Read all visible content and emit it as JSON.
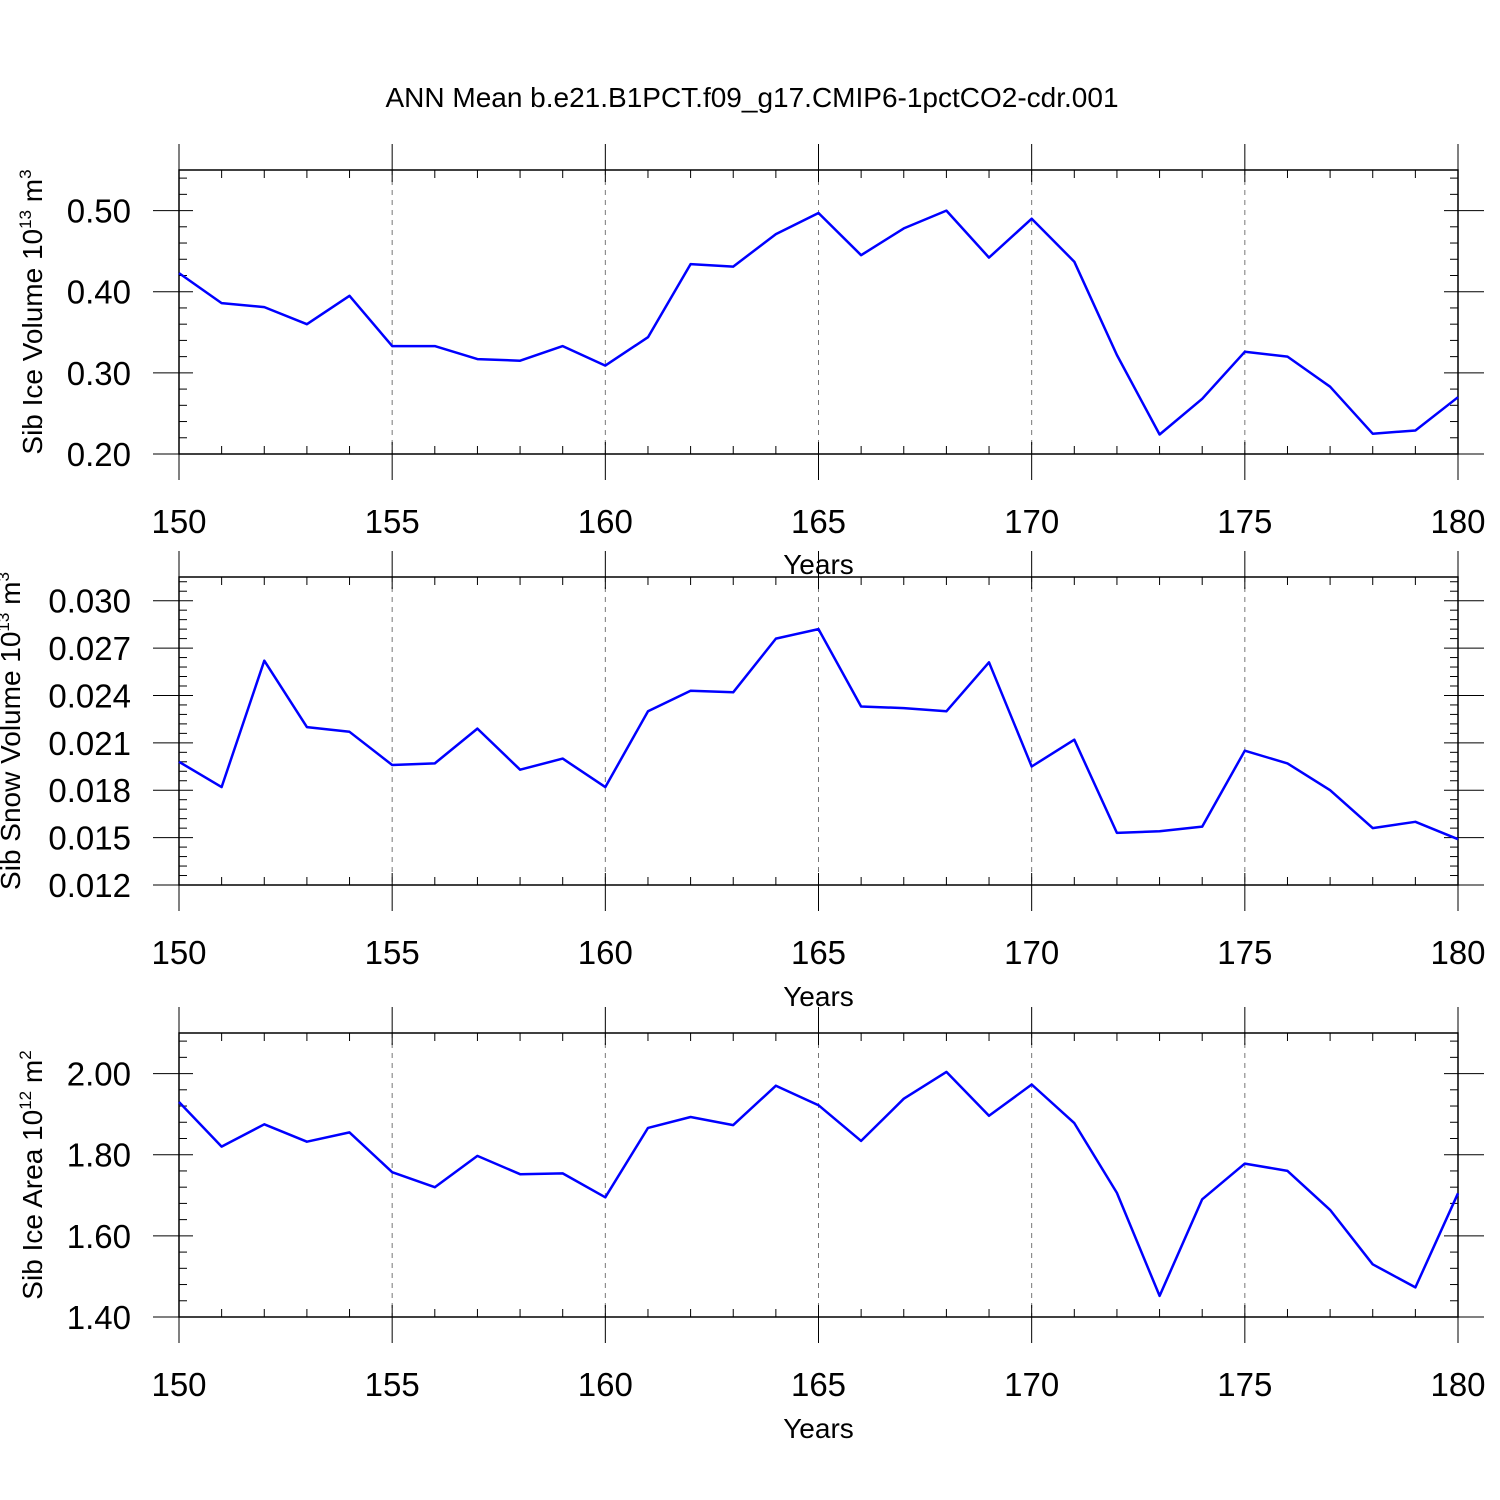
{
  "figure": {
    "title": "ANN Mean b.e21.B1PCT.f09_g17.CMIP6-1pctCO2-cdr.001",
    "line_color": "#0000ff",
    "grid_color": "#777777"
  },
  "chart_data": [
    {
      "type": "line",
      "xlabel": "Years",
      "ylabel": "Sib Ice Volume 10",
      "ylabel_exp": "13",
      "ylabel_unit": " m",
      "ylabel_unit_exp": "3",
      "xlim": [
        150,
        180
      ],
      "ylim": [
        0.2,
        0.55
      ],
      "xticks": [
        150,
        155,
        160,
        165,
        170,
        175,
        180
      ],
      "xtick_labels": [
        "150",
        "155",
        "160",
        "165",
        "170",
        "175",
        "180"
      ],
      "yticks": [
        0.2,
        0.3,
        0.4,
        0.5
      ],
      "ytick_labels": [
        "0.20",
        "0.30",
        "0.40",
        "0.50"
      ],
      "x": [
        150,
        151,
        152,
        153,
        154,
        155,
        156,
        157,
        158,
        159,
        160,
        161,
        162,
        163,
        164,
        165,
        166,
        167,
        168,
        169,
        170,
        171,
        172,
        173,
        174,
        175,
        176,
        177,
        178,
        179,
        180
      ],
      "values": [
        0.423,
        0.386,
        0.381,
        0.36,
        0.395,
        0.333,
        0.333,
        0.317,
        0.315,
        0.333,
        0.309,
        0.344,
        0.434,
        0.431,
        0.471,
        0.497,
        0.445,
        0.478,
        0.5,
        0.442,
        0.49,
        0.437,
        0.322,
        0.224,
        0.268,
        0.326,
        0.32,
        0.283,
        0.225,
        0.229,
        0.27
      ]
    },
    {
      "type": "line",
      "xlabel": "Years",
      "ylabel": "Sib Snow Volume 10",
      "ylabel_exp": "13",
      "ylabel_unit": " m",
      "ylabel_unit_exp": "3",
      "xlim": [
        150,
        180
      ],
      "ylim": [
        0.012,
        0.0315
      ],
      "xticks": [
        150,
        155,
        160,
        165,
        170,
        175,
        180
      ],
      "xtick_labels": [
        "150",
        "155",
        "160",
        "165",
        "170",
        "175",
        "180"
      ],
      "yticks": [
        0.012,
        0.015,
        0.018,
        0.021,
        0.024,
        0.027,
        0.03
      ],
      "ytick_labels": [
        "0.012",
        "0.015",
        "0.018",
        "0.021",
        "0.024",
        "0.027",
        "0.030"
      ],
      "x": [
        150,
        151,
        152,
        153,
        154,
        155,
        156,
        157,
        158,
        159,
        160,
        161,
        162,
        163,
        164,
        165,
        166,
        167,
        168,
        169,
        170,
        171,
        172,
        173,
        174,
        175,
        176,
        177,
        178,
        179,
        180
      ],
      "values": [
        0.0198,
        0.0182,
        0.0262,
        0.022,
        0.0217,
        0.0196,
        0.0197,
        0.0219,
        0.0193,
        0.02,
        0.0182,
        0.023,
        0.0243,
        0.0242,
        0.0276,
        0.0282,
        0.0233,
        0.0232,
        0.023,
        0.0261,
        0.0195,
        0.0212,
        0.0153,
        0.0154,
        0.0157,
        0.0205,
        0.0197,
        0.018,
        0.0156,
        0.016,
        0.0149
      ]
    },
    {
      "type": "line",
      "xlabel": "Years",
      "ylabel": "Sib Ice Area 10",
      "ylabel_exp": "12",
      "ylabel_unit": " m",
      "ylabel_unit_exp": "2",
      "xlim": [
        150,
        180
      ],
      "ylim": [
        1.4,
        2.1
      ],
      "xticks": [
        150,
        155,
        160,
        165,
        170,
        175,
        180
      ],
      "xtick_labels": [
        "150",
        "155",
        "160",
        "165",
        "170",
        "175",
        "180"
      ],
      "yticks": [
        1.4,
        1.6,
        1.8,
        2.0
      ],
      "ytick_labels": [
        "1.40",
        "1.60",
        "1.80",
        "2.00"
      ],
      "x": [
        150,
        151,
        152,
        153,
        154,
        155,
        156,
        157,
        158,
        159,
        160,
        161,
        162,
        163,
        164,
        165,
        166,
        167,
        168,
        169,
        170,
        171,
        172,
        173,
        174,
        175,
        176,
        177,
        178,
        179,
        180
      ],
      "values": [
        1.93,
        1.82,
        1.875,
        1.832,
        1.855,
        1.757,
        1.72,
        1.797,
        1.752,
        1.754,
        1.695,
        1.866,
        1.893,
        1.873,
        1.97,
        1.922,
        1.834,
        1.938,
        2.004,
        1.896,
        1.973,
        1.878,
        1.706,
        1.452,
        1.69,
        1.778,
        1.76,
        1.664,
        1.53,
        1.473,
        1.705
      ]
    }
  ]
}
